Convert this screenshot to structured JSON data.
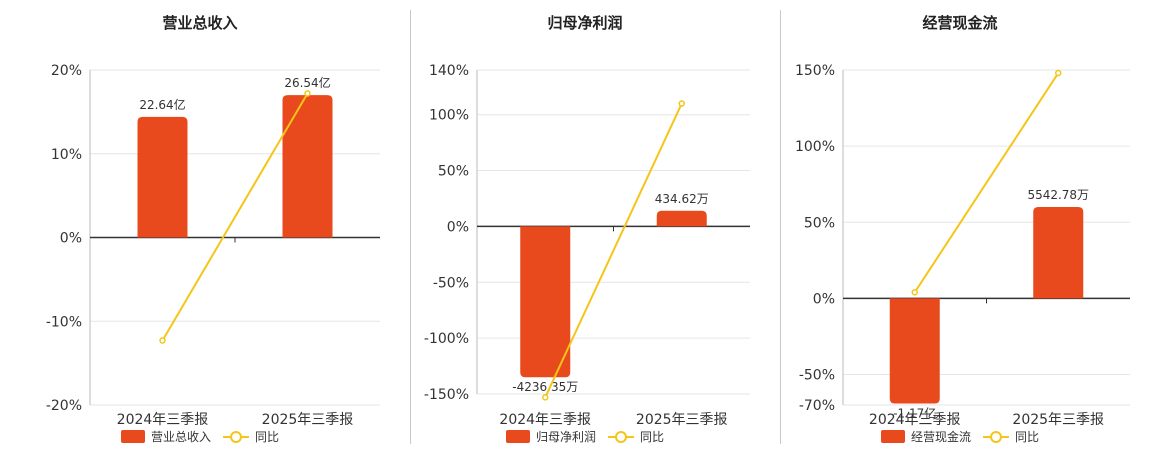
{
  "colors": {
    "bar": "#e84a1d",
    "line": "#f5c518",
    "grid": "#e6e6e6",
    "axis": "#333333",
    "text": "#333333"
  },
  "chart_data": [
    {
      "type": "bar",
      "title": "营业总收入",
      "categories": [
        "2024年三季报",
        "2025年三季报"
      ],
      "series": [
        {
          "name": "营业总收入",
          "type": "bar",
          "values": [
            14.4,
            17.0
          ],
          "labels": [
            "22.64亿",
            "26.54亿"
          ]
        },
        {
          "name": "同比",
          "type": "line",
          "values": [
            -12.3,
            17.2
          ]
        }
      ],
      "ylim": [
        -20,
        20
      ],
      "yticks": [
        -20,
        -10,
        0,
        10,
        20
      ],
      "ytick_labels": [
        "-20%",
        "-10%",
        "0%",
        "10%",
        "20%"
      ],
      "grid": true,
      "legend": "bottom"
    },
    {
      "type": "bar",
      "title": "归母净利润",
      "categories": [
        "2024年三季报",
        "2025年三季报"
      ],
      "series": [
        {
          "name": "归母净利润",
          "type": "bar",
          "values": [
            -135,
            14
          ],
          "labels": [
            "-4236.35万",
            "434.62万"
          ]
        },
        {
          "name": "同比",
          "type": "line",
          "values": [
            -153,
            110
          ]
        }
      ],
      "ylim": [
        -160,
        140
      ],
      "yticks": [
        -150,
        -100,
        -50,
        0,
        50,
        100,
        140
      ],
      "ytick_labels": [
        "-150%",
        "-100%",
        "-50%",
        "0%",
        "50%",
        "100%",
        "140%"
      ],
      "grid": true,
      "legend": "bottom"
    },
    {
      "type": "bar",
      "title": "经营现金流",
      "categories": [
        "2024年三季报",
        "2025年三季报"
      ],
      "series": [
        {
          "name": "经营现金流",
          "type": "bar",
          "values": [
            -69,
            60
          ],
          "labels": [
            "-1.17亿",
            "5542.78万"
          ]
        },
        {
          "name": "同比",
          "type": "line",
          "values": [
            4,
            148
          ]
        }
      ],
      "ylim": [
        -70,
        150
      ],
      "yticks": [
        -70,
        -50,
        0,
        50,
        100,
        150
      ],
      "ytick_labels": [
        "-70%",
        "-50%",
        "0%",
        "50%",
        "100%",
        "150%"
      ],
      "grid": true,
      "legend": "bottom"
    }
  ]
}
